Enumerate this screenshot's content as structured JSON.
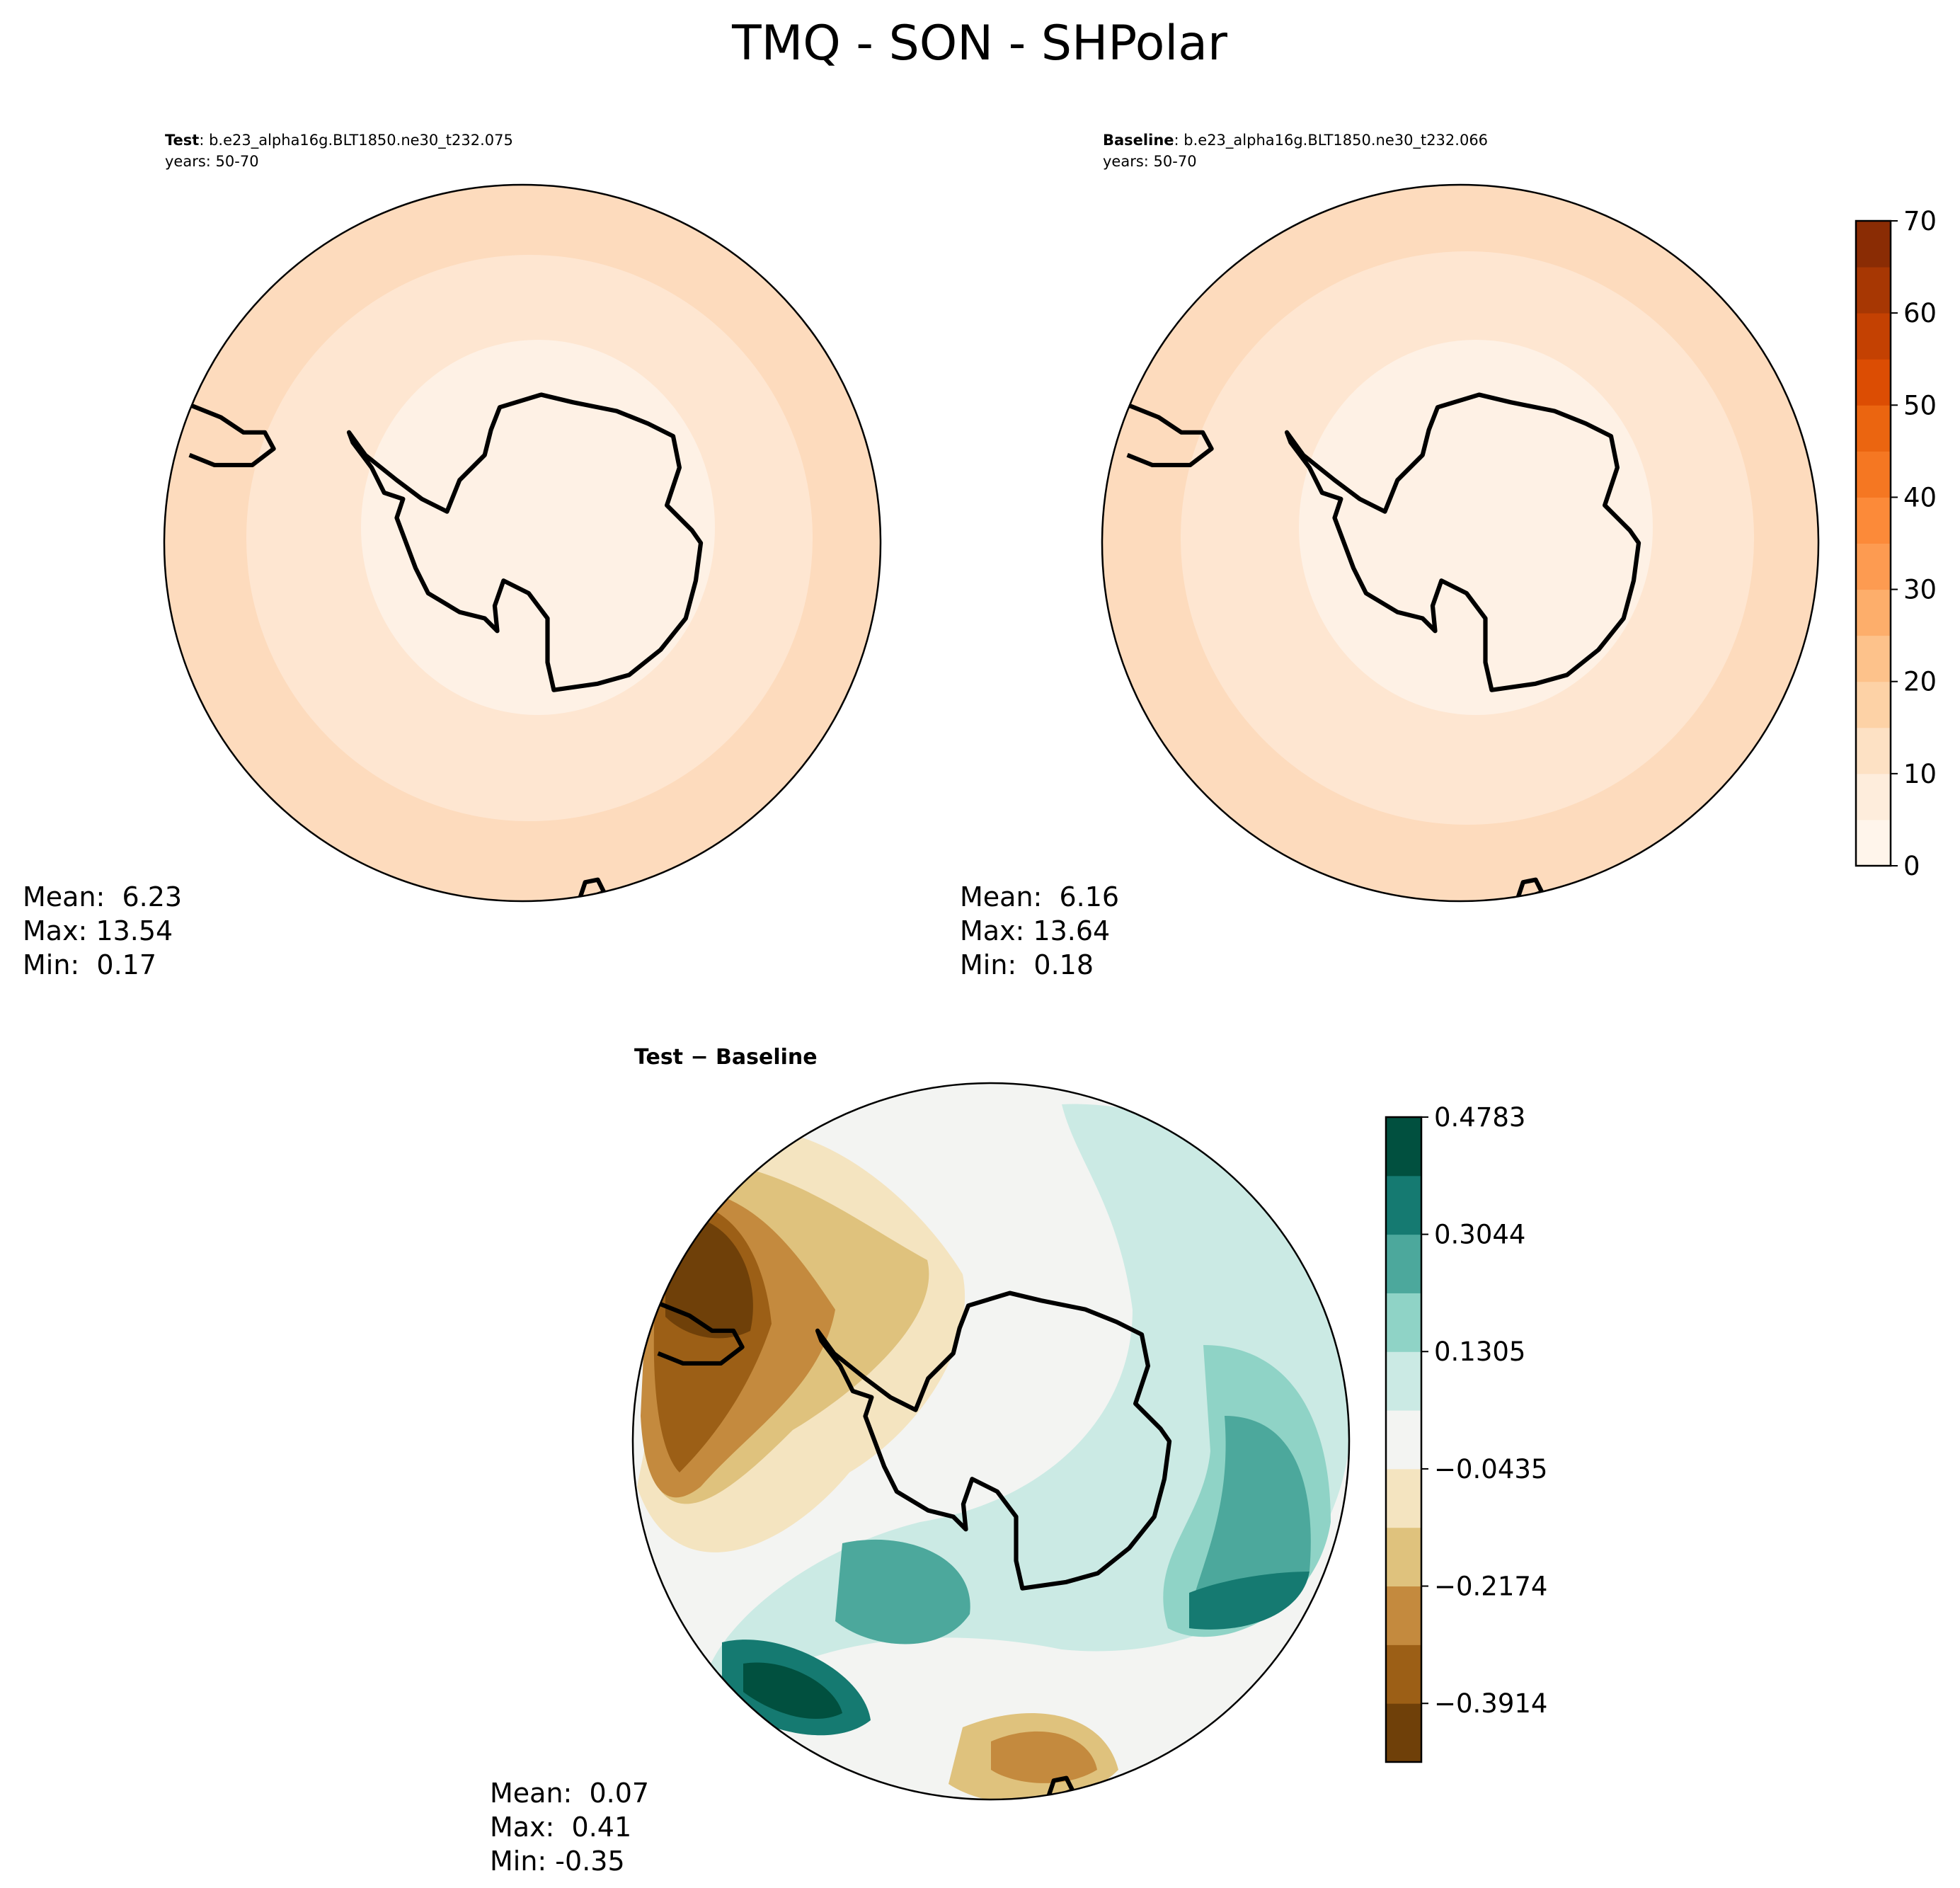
{
  "title": "TMQ - SON - SHPolar",
  "panels": [
    {
      "label": "Test",
      "subtitle": ": b.e23_alpha16g.BLT1850.ne30_t232.075",
      "years": "years: 50-70",
      "stats": [
        "Mean:  6.23",
        "Max: 13.54",
        "Min:  0.17"
      ]
    },
    {
      "label": "Baseline",
      "subtitle": ": b.e23_alpha16g.BLT1850.ne30_t232.066",
      "years": "years: 50-70",
      "stats": [
        "Mean:  6.16",
        "Max: 13.64",
        "Min:  0.18"
      ]
    },
    {
      "label": "Test − Baseline",
      "stats": [
        "Mean:  0.07",
        "Max:  0.41",
        "Min: -0.35"
      ]
    }
  ],
  "colorbars": [
    {
      "lim": [
        0,
        70
      ],
      "ticks": [
        0,
        10,
        20,
        30,
        40,
        50,
        60,
        70
      ],
      "colors": [
        "#fff5eb",
        "#feeddc",
        "#fde1c4",
        "#fdd2a6",
        "#fdc28b",
        "#fdae6b",
        "#fd9b51",
        "#fc8a39",
        "#f57722",
        "#eb6510",
        "#dc4d03",
        "#c44102",
        "#a73703",
        "#8a2c04"
      ]
    },
    {
      "lim": [
        -0.4783,
        0.4783
      ],
      "ticks": [
        {
          "value": -0.3914,
          "label": "−0.3914"
        },
        {
          "value": -0.2174,
          "label": "−0.2174"
        },
        {
          "value": -0.0435,
          "label": "−0.0435"
        },
        0.1305,
        0.3044,
        0.4783
      ],
      "colors": [
        "#6f4009",
        "#9c5f16",
        "#c48a3e",
        "#dfc27d",
        "#f4e4c0",
        "#f3f4f2",
        "#cbeae4",
        "#8fd3c6",
        "#4ca89c",
        "#157a71",
        "#01503f"
      ]
    }
  ]
}
